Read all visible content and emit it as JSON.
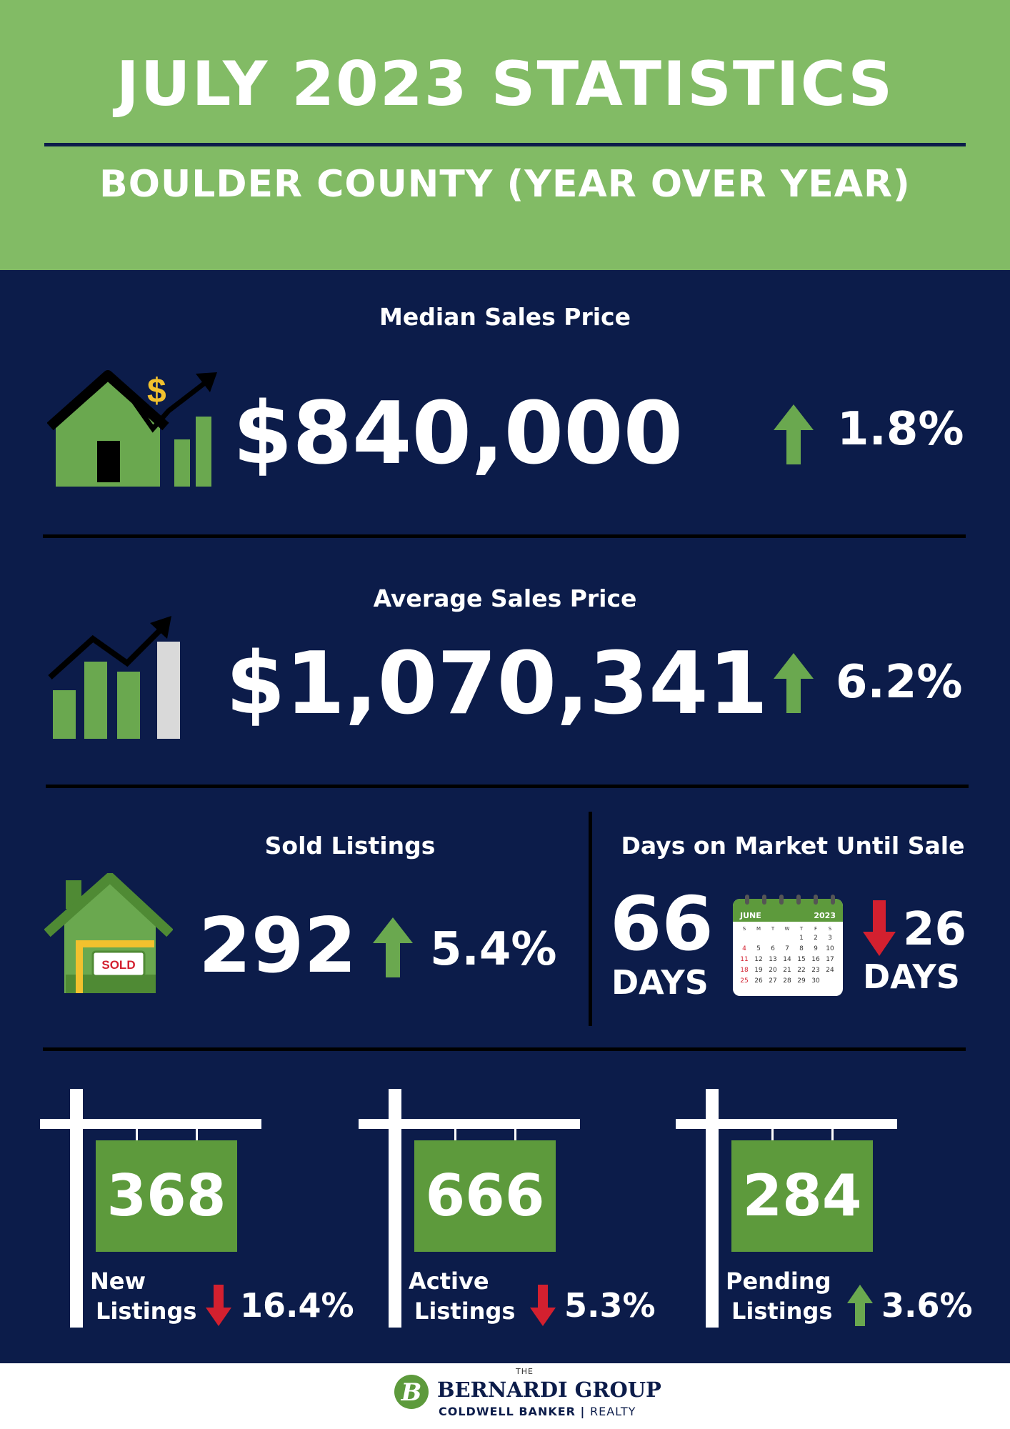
{
  "header": {
    "title": "JULY 2023 STATISTICS",
    "subtitle": "BOULDER COUNTY (YEAR OVER YEAR)"
  },
  "median": {
    "label": "Median Sales Price",
    "value": "$840,000",
    "change": "1.8%",
    "direction": "up",
    "icon": "house-rising-chart-icon"
  },
  "average": {
    "label": "Average Sales Price",
    "value": "$1,070,341",
    "change": "6.2%",
    "direction": "up",
    "icon": "bar-chart-arrow-icon"
  },
  "sold": {
    "label": "Sold Listings",
    "value": "292",
    "change": "5.4%",
    "direction": "up",
    "icon": "sold-house-icon",
    "sign_text": "SOLD"
  },
  "days": {
    "label": "Days on Market Until Sale",
    "value": "66",
    "unit": "DAYS",
    "change": "26",
    "change_unit": "DAYS",
    "direction": "down",
    "calendar": {
      "month": "JUNE",
      "year": "2023",
      "weekdays": [
        "S",
        "M",
        "T",
        "W",
        "T",
        "F",
        "S"
      ],
      "weeks": [
        [
          "",
          "",
          "",
          "",
          "1",
          "2",
          "3"
        ],
        [
          "4",
          "5",
          "6",
          "7",
          "8",
          "9",
          "10"
        ],
        [
          "11",
          "12",
          "13",
          "14",
          "15",
          "16",
          "17"
        ],
        [
          "18",
          "19",
          "20",
          "21",
          "22",
          "23",
          "24"
        ],
        [
          "25",
          "26",
          "27",
          "28",
          "29",
          "30",
          ""
        ]
      ]
    }
  },
  "listings": [
    {
      "value": "368",
      "label_line1": "New",
      "label_line2": "Listings",
      "change": "16.4%",
      "direction": "down"
    },
    {
      "value": "666",
      "label_line1": "Active",
      "label_line2": "Listings",
      "change": "5.3%",
      "direction": "down"
    },
    {
      "value": "284",
      "label_line1": "Pending",
      "label_line2": "Listings",
      "change": "3.6%",
      "direction": "up"
    }
  ],
  "footer": {
    "logo_the": "THE",
    "logo_name": "BERNARDI GROUP",
    "logo_sub_left": "COLDWELL BANKER",
    "logo_sub_right": "REALTY",
    "logo_mark": "B"
  },
  "colors": {
    "green": "#82bb65",
    "navy": "#0c1c4a",
    "dark_green": "#5d9a3c",
    "up_arrow": "#6aa84f",
    "down_arrow": "#d3202f"
  }
}
